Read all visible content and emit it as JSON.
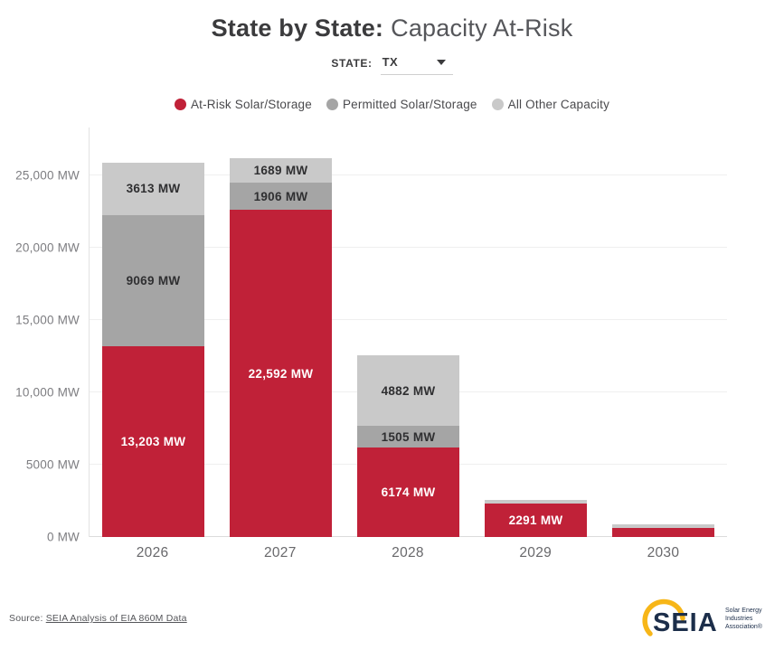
{
  "title": {
    "bold": "State by State:",
    "regular": "Capacity At-Risk"
  },
  "state_selector": {
    "label": "STATE:",
    "value": "TX"
  },
  "legend": [
    {
      "label": "At-Risk Solar/Storage",
      "color": "#c02138"
    },
    {
      "label": "Permitted Solar/Storage",
      "color": "#a5a5a5"
    },
    {
      "label": "All Other Capacity",
      "color": "#c9c9c9"
    }
  ],
  "chart_data": {
    "type": "bar",
    "stacked": true,
    "title": "State by State: Capacity At-Risk",
    "state": "TX",
    "categories": [
      "2026",
      "2027",
      "2028",
      "2029",
      "2030"
    ],
    "series": [
      {
        "name": "At-Risk Solar/Storage",
        "short": "at-risk",
        "color": "#c02138",
        "label_color": "#ffffff",
        "values": [
          13203,
          22592,
          6174,
          2291,
          640
        ],
        "labels": [
          "13,203 MW",
          "22,592 MW",
          "6174 MW",
          "2291 MW",
          ""
        ]
      },
      {
        "name": "Permitted Solar/Storage",
        "short": "permitted",
        "color": "#a5a5a5",
        "label_color": "#2f2f31",
        "values": [
          9069,
          1906,
          1505,
          0,
          0
        ],
        "labels": [
          "9069 MW",
          "1906 MW",
          "1505 MW",
          "",
          ""
        ]
      },
      {
        "name": "All Other Capacity",
        "short": "all-other",
        "color": "#c9c9c9",
        "label_color": "#2f2f31",
        "values": [
          3613,
          1689,
          4882,
          250,
          250
        ],
        "labels": [
          "3613 MW",
          "1689 MW",
          "4882 MW",
          "",
          ""
        ]
      }
    ],
    "ylabel_ticks": [
      "0 MW",
      "5000 MW",
      "10,000 MW",
      "15,000 MW",
      "20,000 MW",
      "25,000 MW"
    ],
    "ytick_values": [
      0,
      5000,
      10000,
      15000,
      20000,
      25000
    ],
    "ylim": [
      0,
      28300
    ],
    "grid": true,
    "legend_position": "top",
    "unit": "MW"
  },
  "footer": {
    "source_prefix": "Source:",
    "source_link": "SEIA Analysis of EIA 860M Data"
  },
  "logo": {
    "text": "SEIA",
    "tagline_lines": [
      "Solar Energy",
      "Industries",
      "Association®"
    ],
    "gold": "#f7b618",
    "navy": "#1c2e4a"
  }
}
